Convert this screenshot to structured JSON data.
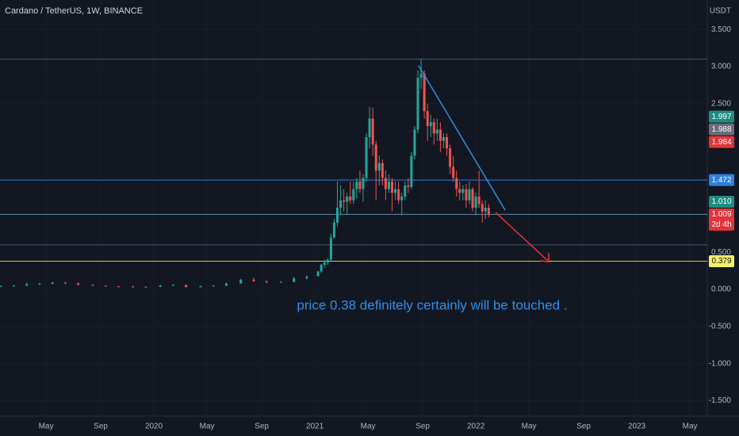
{
  "chart_data": {
    "type": "candlestick",
    "title": "Cardano / TetherUS, 1W, BINANCE",
    "currency": "USDT",
    "annotation": "price 0.38 definitely certainly will be touched .",
    "up_color": "#26a69a",
    "down_color": "#ef5350",
    "ylim": [
      -1.708,
      3.897
    ],
    "yticks": [
      {
        "value": 3.5,
        "label": "3.500"
      },
      {
        "value": 3,
        "label": "3.000"
      },
      {
        "value": 2.5,
        "label": "2.500"
      },
      {
        "value": 0.5,
        "label": "0.500"
      },
      {
        "value": 0,
        "label": "0.000"
      },
      {
        "value": -0.5,
        "label": "-0.500"
      },
      {
        "value": -1,
        "label": "-1.000"
      },
      {
        "value": -1.5,
        "label": "-1.500"
      }
    ],
    "xlim": [
      2019.044,
      2023.438
    ],
    "xticks": [
      {
        "value": 2019.33,
        "label": "May"
      },
      {
        "value": 2019.67,
        "label": "Sep"
      },
      {
        "value": 2020,
        "label": "2020"
      },
      {
        "value": 2020.33,
        "label": "May"
      },
      {
        "value": 2020.67,
        "label": "Sep"
      },
      {
        "value": 2021,
        "label": "2021"
      },
      {
        "value": 2021.33,
        "label": "May"
      },
      {
        "value": 2021.67,
        "label": "Sep"
      },
      {
        "value": 2022,
        "label": "2022"
      },
      {
        "value": 2022.33,
        "label": "May"
      },
      {
        "value": 2022.67,
        "label": "Sep"
      },
      {
        "value": 2023,
        "label": "2023"
      },
      {
        "value": 2023.33,
        "label": "May"
      }
    ],
    "x": [
      2019.05,
      2019.13,
      2019.21,
      2019.29,
      2019.37,
      2019.45,
      2019.53,
      2019.62,
      2019.7,
      2019.78,
      2019.87,
      2019.95,
      2020.04,
      2020.12,
      2020.2,
      2020.29,
      2020.37,
      2020.45,
      2020.54,
      2020.62,
      2020.7,
      2020.79,
      2020.87,
      2020.95,
      2021.02,
      2021.04,
      2021.06,
      2021.08,
      2021.1,
      2021.12,
      2021.14,
      2021.16,
      2021.18,
      2021.2,
      2021.22,
      2021.24,
      2021.26,
      2021.28,
      2021.3,
      2021.32,
      2021.34,
      2021.36,
      2021.38,
      2021.4,
      2021.42,
      2021.44,
      2021.46,
      2021.48,
      2021.5,
      2021.52,
      2021.54,
      2021.56,
      2021.58,
      2021.6,
      2021.62,
      2021.64,
      2021.66,
      2021.68,
      2021.7,
      2021.72,
      2021.74,
      2021.76,
      2021.78,
      2021.8,
      2021.82,
      2021.84,
      2021.86,
      2021.88,
      2021.9,
      2021.92,
      2021.94,
      2021.96,
      2021.98,
      2022,
      2022.02,
      2022.04,
      2022.06,
      2022.08
    ],
    "ohlc": [
      [
        0.04,
        0.05,
        0.03,
        0.045
      ],
      [
        0.045,
        0.06,
        0.04,
        0.05
      ],
      [
        0.05,
        0.09,
        0.045,
        0.07
      ],
      [
        0.07,
        0.09,
        0.06,
        0.075
      ],
      [
        0.075,
        0.1,
        0.07,
        0.09
      ],
      [
        0.09,
        0.1,
        0.07,
        0.08
      ],
      [
        0.08,
        0.09,
        0.055,
        0.06
      ],
      [
        0.06,
        0.065,
        0.045,
        0.05
      ],
      [
        0.05,
        0.05,
        0.035,
        0.04
      ],
      [
        0.04,
        0.045,
        0.035,
        0.037
      ],
      [
        0.037,
        0.05,
        0.032,
        0.035
      ],
      [
        0.035,
        0.04,
        0.03,
        0.033
      ],
      [
        0.033,
        0.06,
        0.032,
        0.05
      ],
      [
        0.05,
        0.07,
        0.045,
        0.06
      ],
      [
        0.06,
        0.06,
        0.025,
        0.03
      ],
      [
        0.03,
        0.05,
        0.028,
        0.045
      ],
      [
        0.045,
        0.06,
        0.04,
        0.05
      ],
      [
        0.05,
        0.09,
        0.045,
        0.08
      ],
      [
        0.08,
        0.14,
        0.075,
        0.13
      ],
      [
        0.13,
        0.16,
        0.1,
        0.11
      ],
      [
        0.11,
        0.12,
        0.08,
        0.1
      ],
      [
        0.1,
        0.11,
        0.09,
        0.1
      ],
      [
        0.1,
        0.17,
        0.095,
        0.15
      ],
      [
        0.15,
        0.19,
        0.13,
        0.17
      ],
      [
        0.18,
        0.25,
        0.17,
        0.24
      ],
      [
        0.24,
        0.34,
        0.22,
        0.33
      ],
      [
        0.33,
        0.4,
        0.29,
        0.36
      ],
      [
        0.36,
        0.42,
        0.33,
        0.4
      ],
      [
        0.4,
        0.75,
        0.38,
        0.7
      ],
      [
        0.7,
        0.95,
        0.68,
        0.9
      ],
      [
        0.9,
        1.45,
        0.85,
        1.1
      ],
      [
        1.1,
        1.4,
        1,
        1.2
      ],
      [
        1.2,
        1.35,
        1.05,
        1.18
      ],
      [
        1.18,
        1.3,
        1,
        1.25
      ],
      [
        1.25,
        1.45,
        1.15,
        1.2
      ],
      [
        1.2,
        1.45,
        1.15,
        1.35
      ],
      [
        1.35,
        1.5,
        1.22,
        1.45
      ],
      [
        1.45,
        1.6,
        1.3,
        1.35
      ],
      [
        1.35,
        1.55,
        1.18,
        1.5
      ],
      [
        1.5,
        2.1,
        1.45,
        2.05
      ],
      [
        2.05,
        2.46,
        1.9,
        2.3
      ],
      [
        2.3,
        2.45,
        1.8,
        1.95
      ],
      [
        1.95,
        2,
        1.2,
        1.6
      ],
      [
        1.6,
        1.8,
        1.4,
        1.7
      ],
      [
        1.7,
        1.75,
        1.4,
        1.5
      ],
      [
        1.5,
        1.6,
        1.2,
        1.35
      ],
      [
        1.35,
        1.55,
        1.3,
        1.45
      ],
      [
        1.45,
        1.5,
        1.05,
        1.3
      ],
      [
        1.3,
        1.45,
        1.2,
        1.35
      ],
      [
        1.35,
        1.45,
        1.15,
        1.2
      ],
      [
        1.2,
        1.3,
        1,
        1.25
      ],
      [
        1.25,
        1.45,
        1.2,
        1.4
      ],
      [
        1.4,
        1.5,
        1.3,
        1.38
      ],
      [
        1.38,
        1.85,
        1.35,
        1.8
      ],
      [
        1.8,
        2.2,
        1.75,
        2.15
      ],
      [
        2.15,
        2.95,
        2.1,
        2.85
      ],
      [
        2.85,
        3.1,
        2.7,
        2.9
      ],
      [
        2.9,
        2.95,
        2.3,
        2.4
      ],
      [
        2.4,
        2.5,
        2,
        2.2
      ],
      [
        2.2,
        2.35,
        2.05,
        2.25
      ],
      [
        2.25,
        2.3,
        1.95,
        2.1
      ],
      [
        2.1,
        2.3,
        2,
        2.15
      ],
      [
        2.15,
        2.25,
        1.85,
        2
      ],
      [
        2,
        2.1,
        1.9,
        2.05
      ],
      [
        2.05,
        2.1,
        1.8,
        1.9
      ],
      [
        1.9,
        1.95,
        1.55,
        1.65
      ],
      [
        1.65,
        1.8,
        1.45,
        1.5
      ],
      [
        1.5,
        1.6,
        1.25,
        1.35
      ],
      [
        1.35,
        1.45,
        1.2,
        1.3
      ],
      [
        1.3,
        1.4,
        1.2,
        1.35
      ],
      [
        1.35,
        1.42,
        1.1,
        1.2
      ],
      [
        1.2,
        1.45,
        1.15,
        1.35
      ],
      [
        1.35,
        1.38,
        1.05,
        1.1
      ],
      [
        1.1,
        1.3,
        1,
        1.25
      ],
      [
        1.25,
        1.6,
        1.1,
        1.15
      ],
      [
        1.15,
        1.2,
        0.9,
        1.05
      ],
      [
        1.05,
        1.2,
        0.95,
        1.1
      ],
      [
        1.1,
        1.15,
        0.97,
        1.009
      ]
    ],
    "levels": [
      {
        "value": 3.1,
        "color": "#4a5470"
      },
      {
        "value": 1.472,
        "color": "#2f7fe0"
      },
      {
        "value": 1.01,
        "color": "#5b8fa8"
      },
      {
        "value": 0.6,
        "color": "#4a5470"
      },
      {
        "value": 0.379,
        "color": "#d8d02a"
      }
    ],
    "price_labels": [
      {
        "value": 1.997,
        "label": "1.997",
        "color": "#1e8c84"
      },
      {
        "value": 1.988,
        "label": "1.988",
        "color": "#6a6d78"
      },
      {
        "value": 1.984,
        "label": "1.984",
        "color": "#e0363b"
      },
      {
        "value": 1.472,
        "label": "1.472",
        "color": "#2f7fe0"
      },
      {
        "value": 1.01,
        "label": "1.010",
        "color": "#1e8c84"
      },
      {
        "value": 1.009,
        "label": "1.009",
        "color": "#e0363b",
        "countdown": "2d 4h"
      },
      {
        "value": 0.379,
        "label": "0.379",
        "color": "#f5f06a"
      }
    ]
  }
}
